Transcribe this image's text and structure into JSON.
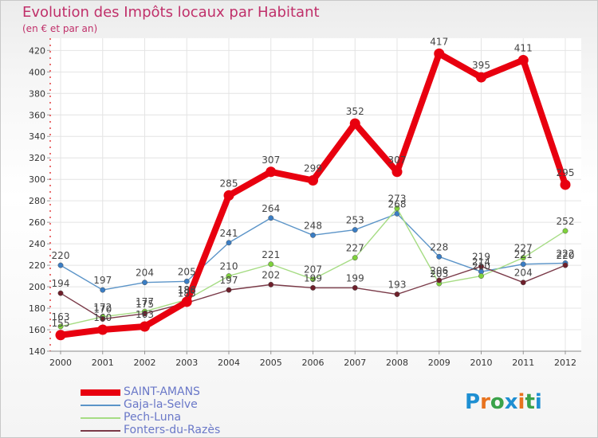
{
  "title": "Evolution des Impôts locaux par Habitant",
  "subtitle": "(en € et par an)",
  "brand": {
    "text": "Proxiti",
    "letters": [
      "P",
      "r",
      "o",
      "x",
      "i",
      "t",
      "i"
    ],
    "colors": [
      "#1e8fd2",
      "#e8731e",
      "#3aa24a",
      "#1e8fd2",
      "#e8731e",
      "#3aa24a",
      "#1e8fd2"
    ]
  },
  "chart_data": {
    "type": "line",
    "title": "Evolution des Impôts locaux par Habitant",
    "subtitle": "(en € et par an)",
    "xlabel": "",
    "ylabel": "",
    "ylim": [
      140,
      420
    ],
    "yticks": [
      140,
      160,
      180,
      200,
      220,
      240,
      260,
      280,
      300,
      320,
      340,
      360,
      380,
      400,
      420
    ],
    "categories": [
      "2000",
      "2001",
      "2002",
      "2003",
      "2004",
      "2005",
      "2006",
      "2007",
      "2008",
      "2009",
      "2010",
      "2011",
      "2012"
    ],
    "grid": true,
    "legend_position": "bottom-left",
    "series": [
      {
        "name": "SAINT-AMANS",
        "color": "#e8000f",
        "marker_color": "#e8000f",
        "weight": "thick",
        "values": [
          155,
          160,
          163,
          186,
          285,
          307,
          299,
          352,
          307,
          417,
          395,
          411,
          295
        ]
      },
      {
        "name": "Gaja-la-Selve",
        "color": "#5b94c8",
        "marker_color": "#3a7dc4",
        "weight": "thin",
        "values": [
          220,
          197,
          204,
          205,
          241,
          264,
          248,
          253,
          268,
          228,
          214,
          221,
          222
        ]
      },
      {
        "name": "Pech-Luna",
        "color": "#a6dc84",
        "marker_color": "#7fd23c",
        "weight": "thin",
        "values": [
          163,
          172,
          177,
          188,
          210,
          221,
          207,
          227,
          273,
          203,
          210,
          227,
          252
        ]
      },
      {
        "name": "Fonters-du-Razès",
        "color": "#7a3a48",
        "marker_color": "#6e1f2a",
        "weight": "thin",
        "values": [
          194,
          170,
          175,
          185,
          197,
          202,
          199,
          199,
          193,
          206,
          219,
          204,
          220
        ]
      }
    ]
  }
}
